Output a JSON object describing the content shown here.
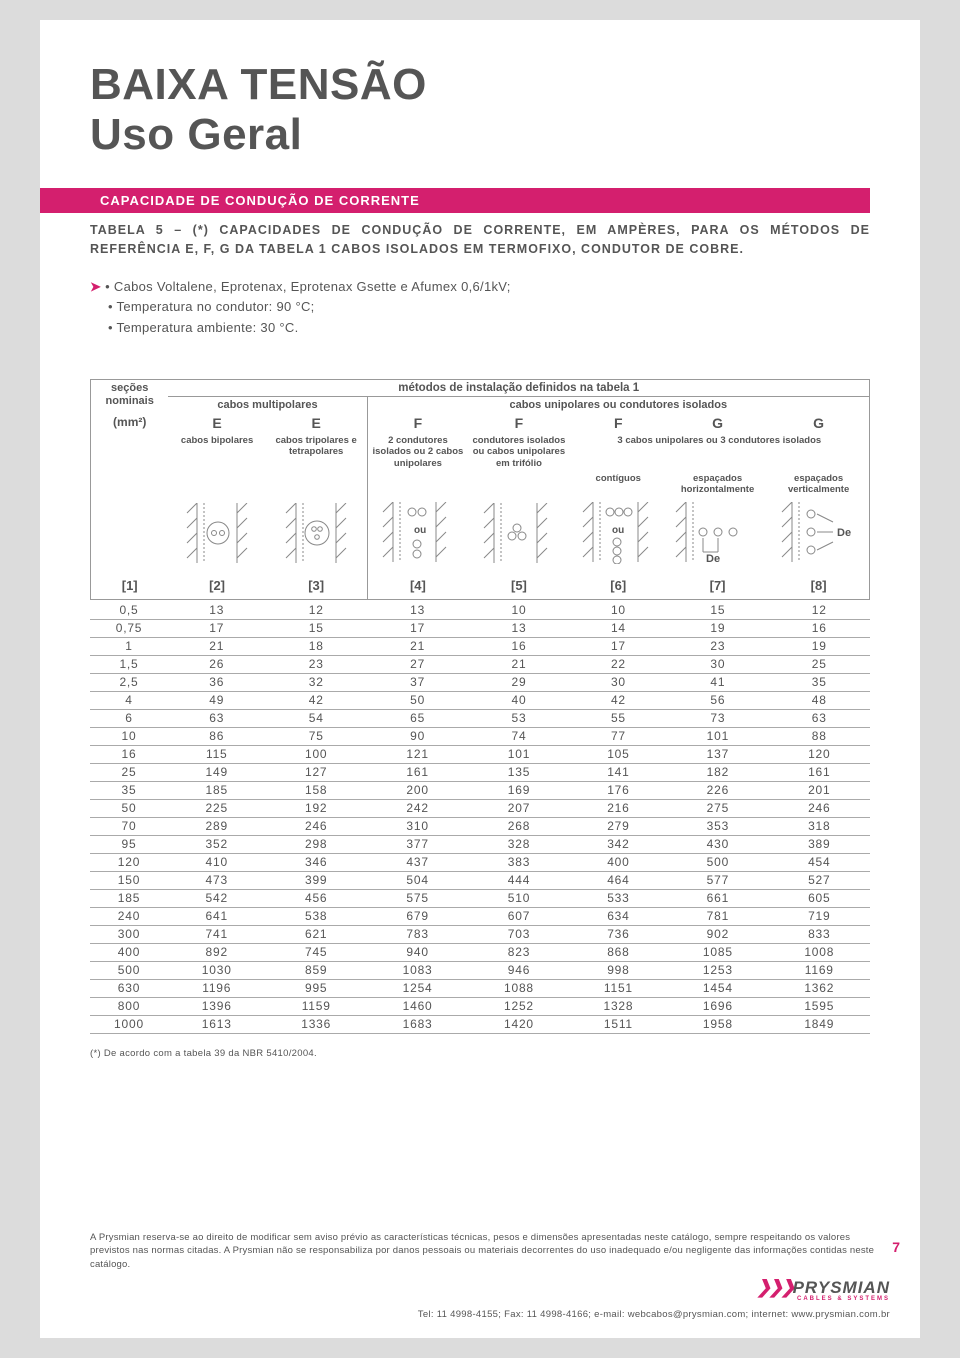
{
  "title_l1": "BAIXA TENSÃO",
  "title_l2": "Uso Geral",
  "pink_header": "CAPACIDADE DE CONDUÇÃO DE CORRENTE",
  "table_title": "TABELA 5 – (*) CAPACIDADES DE CONDUÇÃO DE CORRENTE, EM AMPÈRES, PARA OS MÉTODOS DE REFERÊNCIA E, F, G DA TABELA 1 CABOS ISOLADOS EM TERMOFIXO, CONDUTOR DE COBRE.",
  "note1": "• Cabos Voltalene, Eprotenax, Eprotenax Gsette e Afumex 0,6/1kV;",
  "note2": "• Temperatura no condutor: 90 °C;",
  "note3": "• Temperatura ambiente: 30 °C.",
  "hdr_sections": "seções nominais",
  "hdr_methods": "métodos de instalação definidos na tabela 1",
  "hdr_multi": "cabos multipolares",
  "hdr_uni": "cabos unipolares ou condutores isolados",
  "unit": "(mm²)",
  "col_letters": [
    "E",
    "E",
    "F",
    "F",
    "F",
    "G",
    "G"
  ],
  "col_sub2": "cabos bipolares",
  "col_sub3": "cabos tripolares e tetrapolares",
  "col_sub4": "2 condutores isolados ou 2 cabos unipolares",
  "col_sub5": "condutores isolados ou cabos unipolares em trifólio",
  "col_sub678_span": "3 cabos unipolares ou 3 condutores isolados",
  "col_sub6": "contíguos",
  "col_sub7": "espaçados horizontalmente",
  "col_sub8": "espaçados verticalmente",
  "label_ou": "ou",
  "label_de": "De",
  "col_nums": [
    "[1]",
    "[2]",
    "[3]",
    "[4]",
    "[5]",
    "[6]",
    "[7]",
    "[8]"
  ],
  "rows": [
    [
      "0,5",
      "13",
      "12",
      "13",
      "10",
      "10",
      "15",
      "12"
    ],
    [
      "0,75",
      "17",
      "15",
      "17",
      "13",
      "14",
      "19",
      "16"
    ],
    [
      "1",
      "21",
      "18",
      "21",
      "16",
      "17",
      "23",
      "19"
    ],
    [
      "1,5",
      "26",
      "23",
      "27",
      "21",
      "22",
      "30",
      "25"
    ],
    [
      "2,5",
      "36",
      "32",
      "37",
      "29",
      "30",
      "41",
      "35"
    ],
    [
      "4",
      "49",
      "42",
      "50",
      "40",
      "42",
      "56",
      "48"
    ],
    [
      "6",
      "63",
      "54",
      "65",
      "53",
      "55",
      "73",
      "63"
    ],
    [
      "10",
      "86",
      "75",
      "90",
      "74",
      "77",
      "101",
      "88"
    ],
    [
      "16",
      "115",
      "100",
      "121",
      "101",
      "105",
      "137",
      "120"
    ],
    [
      "25",
      "149",
      "127",
      "161",
      "135",
      "141",
      "182",
      "161"
    ],
    [
      "35",
      "185",
      "158",
      "200",
      "169",
      "176",
      "226",
      "201"
    ],
    [
      "50",
      "225",
      "192",
      "242",
      "207",
      "216",
      "275",
      "246"
    ],
    [
      "70",
      "289",
      "246",
      "310",
      "268",
      "279",
      "353",
      "318"
    ],
    [
      "95",
      "352",
      "298",
      "377",
      "328",
      "342",
      "430",
      "389"
    ],
    [
      "120",
      "410",
      "346",
      "437",
      "383",
      "400",
      "500",
      "454"
    ],
    [
      "150",
      "473",
      "399",
      "504",
      "444",
      "464",
      "577",
      "527"
    ],
    [
      "185",
      "542",
      "456",
      "575",
      "510",
      "533",
      "661",
      "605"
    ],
    [
      "240",
      "641",
      "538",
      "679",
      "607",
      "634",
      "781",
      "719"
    ],
    [
      "300",
      "741",
      "621",
      "783",
      "703",
      "736",
      "902",
      "833"
    ],
    [
      "400",
      "892",
      "745",
      "940",
      "823",
      "868",
      "1085",
      "1008"
    ],
    [
      "500",
      "1030",
      "859",
      "1083",
      "946",
      "998",
      "1253",
      "1169"
    ],
    [
      "630",
      "1196",
      "995",
      "1254",
      "1088",
      "1151",
      "1454",
      "1362"
    ],
    [
      "800",
      "1396",
      "1159",
      "1460",
      "1252",
      "1328",
      "1696",
      "1595"
    ],
    [
      "1000",
      "1613",
      "1336",
      "1683",
      "1420",
      "1511",
      "1958",
      "1849"
    ]
  ],
  "footnote": "(*) De acordo com a tabela 39 da NBR 5410/2004.",
  "disclaimer": "A Prysmian reserva-se ao direito de modificar sem aviso prévio as características técnicas, pesos e dimensões apresentadas neste catálogo, sempre respeitando os valores previstos nas normas citadas. A Prysmian não se responsabiliza por danos pessoais ou materiais decorrentes do uso inadequado e/ou negligente das informações contidas neste catálogo.",
  "page_num": "7",
  "logo_text": "PRYSMIAN",
  "logo_sub": "CABLES & SYSTEMS",
  "contact": "Tel: 11 4998-4155; Fax: 11 4998-4166; e-mail: webcabos@prysmian.com; internet: www.prysmian.com.br",
  "colors": {
    "accent": "#d41f6e",
    "text": "#555555",
    "page_bg": "#ffffff",
    "body_bg": "#dcdcdc",
    "rule": "#aaaaaa"
  },
  "col_widths_pct": [
    10,
    12.5,
    13,
    13,
    13,
    12.5,
    13,
    13
  ]
}
